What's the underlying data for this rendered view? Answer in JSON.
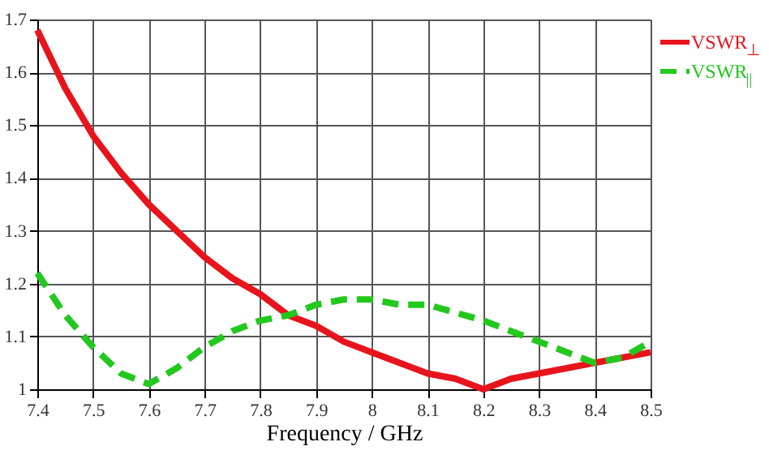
{
  "chart_data": {
    "type": "line",
    "xlabel": "Frequency / GHz",
    "xlim": [
      7.4,
      8.5
    ],
    "xticks": [
      7.4,
      7.5,
      7.6,
      7.7,
      7.8,
      7.9,
      8,
      8.1,
      8.2,
      8.3,
      8.4,
      8.5
    ],
    "ylim": [
      1,
      1.7
    ],
    "yticks": [
      1,
      1.1,
      1.2,
      1.3,
      1.4,
      1.5,
      1.6,
      1.7
    ],
    "tick_labels": true,
    "x": [
      7.4,
      7.45,
      7.5,
      7.55,
      7.6,
      7.65,
      7.7,
      7.75,
      7.8,
      7.85,
      7.9,
      7.95,
      8.0,
      8.05,
      8.1,
      8.15,
      8.2,
      8.25,
      8.3,
      8.4,
      8.5
    ],
    "series": [
      {
        "name": "VSWR$_{⊥}$",
        "color": "#e8141c",
        "line_style": "solid",
        "values": [
          1.68,
          1.57,
          1.48,
          1.41,
          1.35,
          1.3,
          1.25,
          1.21,
          1.18,
          1.14,
          1.12,
          1.09,
          1.07,
          1.05,
          1.03,
          1.02,
          1.0,
          1.02,
          1.03,
          1.05,
          1.07
        ]
      },
      {
        "name": "VSWR$_{||}$",
        "color": "#22c81e",
        "line_style": "dashed",
        "x": [
          7.4,
          7.45,
          7.5,
          7.55,
          7.6,
          7.65,
          7.7,
          7.75,
          7.8,
          7.85,
          7.9,
          7.95,
          8.0,
          8.05,
          8.1,
          8.2,
          8.3,
          8.35,
          8.4,
          8.45,
          8.5
        ],
        "values": [
          1.22,
          1.14,
          1.08,
          1.03,
          1.01,
          1.04,
          1.08,
          1.11,
          1.13,
          1.14,
          1.16,
          1.17,
          1.17,
          1.16,
          1.16,
          1.13,
          1.09,
          1.07,
          1.05,
          1.06,
          1.09
        ]
      }
    ],
    "grid": true,
    "legend": "top right",
    "marker": "none"
  }
}
